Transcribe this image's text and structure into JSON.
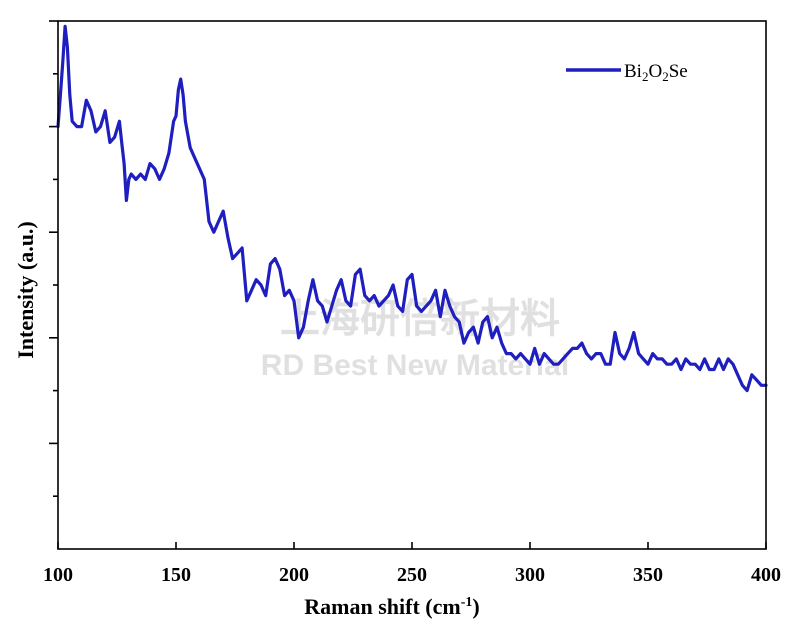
{
  "chart_data": {
    "type": "line",
    "title": "",
    "xlabel": "Raman shift (cm",
    "xlabel_sup": "-1",
    "xlabel_close": ")",
    "ylabel": "Intensity (a.u.)",
    "xlim": [
      100,
      400
    ],
    "ylim": [
      0,
      1
    ],
    "xticks": [
      100,
      150,
      200,
      250,
      300,
      350,
      400
    ],
    "xtick_labels": [
      "100",
      "150",
      "200",
      "250",
      "300",
      "350",
      "400"
    ],
    "y_minor_ticks": [
      0.1,
      0.2,
      0.3,
      0.4,
      0.5,
      0.6,
      0.7,
      0.8,
      0.9,
      1.0
    ],
    "y_major_ticks": [
      0.2,
      0.4,
      0.6,
      0.8,
      1.0
    ],
    "grid": false,
    "legend_position": "top-right",
    "series": [
      {
        "name": "Bi",
        "name_parts": [
          "Bi",
          "2",
          "O",
          "2",
          "Se"
        ],
        "color": "#1f1fbf",
        "x": [
          100,
          101,
          102,
          103,
          104,
          105,
          106,
          108,
          110,
          112,
          114,
          116,
          118,
          120,
          122,
          124,
          126,
          127,
          128,
          129,
          130,
          131,
          133,
          135,
          137,
          139,
          141,
          143,
          145,
          147,
          149,
          150,
          151,
          152,
          153,
          154,
          156,
          158,
          160,
          162,
          164,
          166,
          168,
          170,
          172,
          174,
          176,
          178,
          180,
          182,
          184,
          186,
          188,
          190,
          192,
          194,
          196,
          198,
          200,
          202,
          204,
          206,
          208,
          210,
          212,
          214,
          216,
          218,
          220,
          222,
          224,
          226,
          228,
          230,
          232,
          234,
          236,
          238,
          240,
          242,
          244,
          246,
          248,
          250,
          252,
          254,
          256,
          258,
          260,
          262,
          264,
          266,
          268,
          270,
          272,
          274,
          276,
          278,
          280,
          282,
          284,
          286,
          288,
          290,
          292,
          294,
          296,
          298,
          300,
          302,
          304,
          306,
          308,
          310,
          312,
          314,
          316,
          318,
          320,
          322,
          324,
          326,
          328,
          330,
          332,
          334,
          336,
          338,
          340,
          342,
          344,
          346,
          348,
          350,
          352,
          354,
          356,
          358,
          360,
          362,
          364,
          366,
          368,
          370,
          372,
          374,
          376,
          378,
          380,
          382,
          384,
          386,
          388,
          390,
          392,
          394,
          396,
          398,
          400
        ],
        "y": [
          0.8,
          0.86,
          0.92,
          0.99,
          0.95,
          0.86,
          0.81,
          0.8,
          0.8,
          0.85,
          0.83,
          0.79,
          0.8,
          0.83,
          0.77,
          0.78,
          0.81,
          0.77,
          0.73,
          0.66,
          0.7,
          0.71,
          0.7,
          0.71,
          0.7,
          0.73,
          0.72,
          0.7,
          0.72,
          0.75,
          0.81,
          0.82,
          0.87,
          0.89,
          0.86,
          0.81,
          0.76,
          0.74,
          0.72,
          0.7,
          0.62,
          0.6,
          0.62,
          0.64,
          0.59,
          0.55,
          0.56,
          0.57,
          0.47,
          0.49,
          0.51,
          0.5,
          0.48,
          0.54,
          0.55,
          0.53,
          0.48,
          0.49,
          0.47,
          0.4,
          0.42,
          0.47,
          0.51,
          0.47,
          0.46,
          0.43,
          0.46,
          0.49,
          0.51,
          0.47,
          0.46,
          0.52,
          0.53,
          0.48,
          0.47,
          0.48,
          0.46,
          0.47,
          0.48,
          0.5,
          0.46,
          0.45,
          0.51,
          0.52,
          0.46,
          0.45,
          0.46,
          0.47,
          0.49,
          0.44,
          0.49,
          0.46,
          0.44,
          0.43,
          0.39,
          0.41,
          0.42,
          0.39,
          0.43,
          0.44,
          0.4,
          0.42,
          0.39,
          0.37,
          0.37,
          0.36,
          0.37,
          0.36,
          0.35,
          0.38,
          0.35,
          0.37,
          0.36,
          0.35,
          0.35,
          0.36,
          0.37,
          0.38,
          0.38,
          0.39,
          0.37,
          0.36,
          0.37,
          0.37,
          0.35,
          0.35,
          0.41,
          0.37,
          0.36,
          0.38,
          0.41,
          0.37,
          0.36,
          0.35,
          0.37,
          0.36,
          0.36,
          0.35,
          0.35,
          0.36,
          0.34,
          0.36,
          0.35,
          0.35,
          0.34,
          0.36,
          0.34,
          0.34,
          0.36,
          0.34,
          0.36,
          0.35,
          0.33,
          0.31,
          0.3,
          0.33,
          0.32,
          0.31,
          0.31
        ]
      }
    ]
  },
  "watermark": {
    "line1": "上海研倍新材料",
    "line2": "RD Best New Material"
  }
}
